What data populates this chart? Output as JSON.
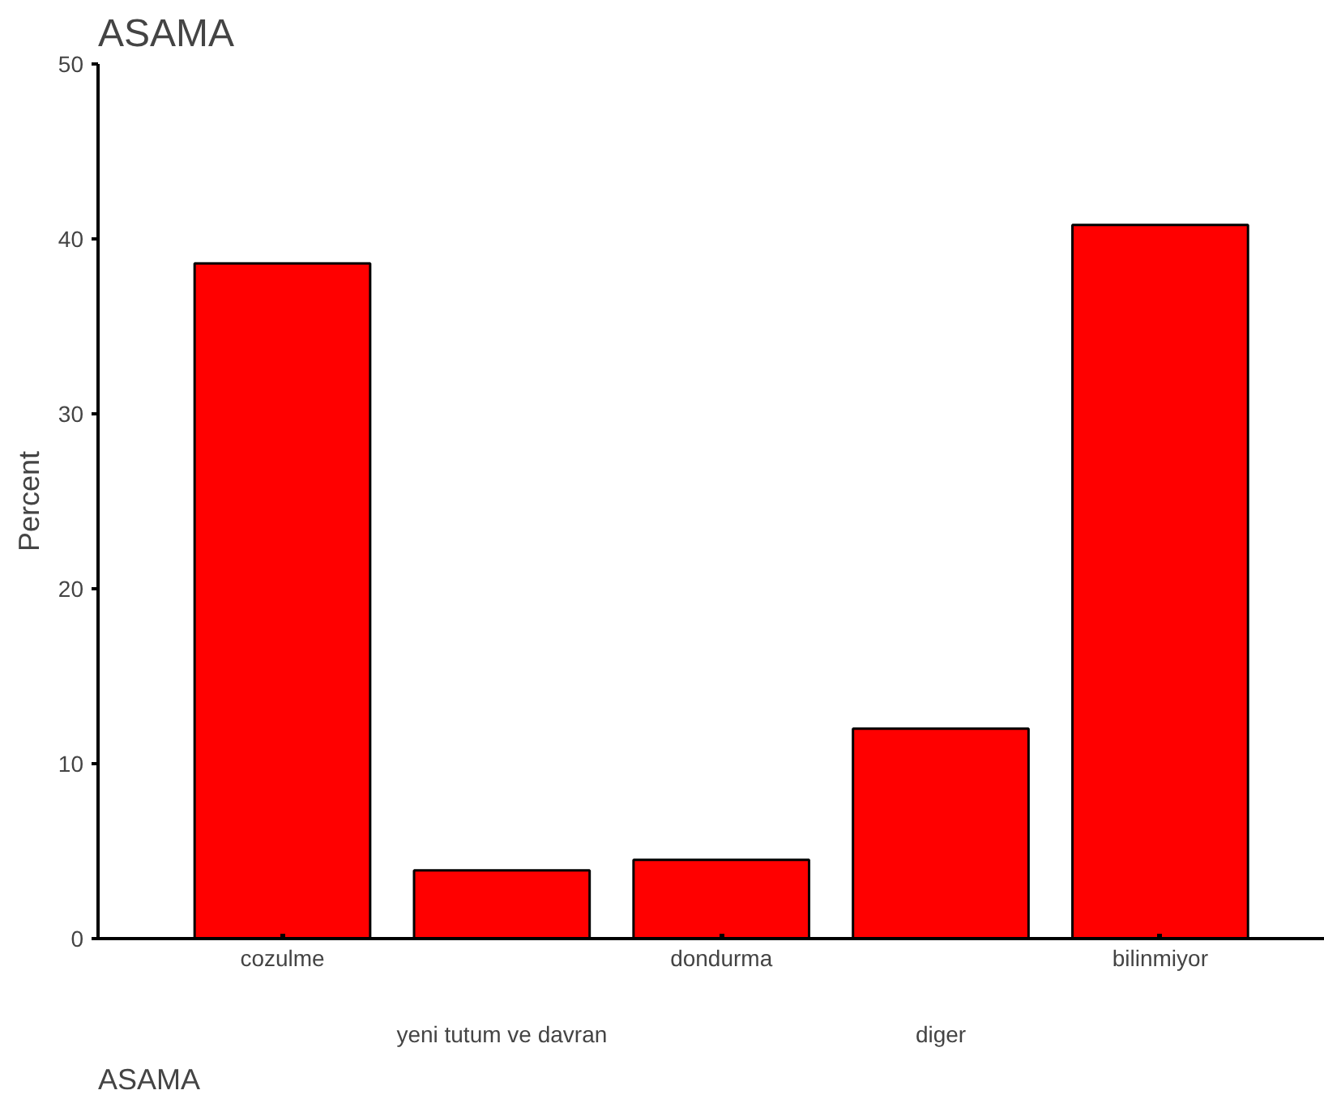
{
  "chart_data": {
    "type": "bar",
    "title": "ASAMA",
    "xlabel": "ASAMA",
    "ylabel": "Percent",
    "categories": [
      "cozulme",
      "yeni tutum ve davran",
      "dondurma",
      "diger",
      "bilinmiyor"
    ],
    "values": [
      38.6,
      3.9,
      4.5,
      12.0,
      40.8
    ],
    "color": "#ff0000",
    "ylim": [
      0,
      50
    ],
    "yticks": [
      0,
      10,
      20,
      30,
      40,
      50
    ],
    "grid": false
  }
}
